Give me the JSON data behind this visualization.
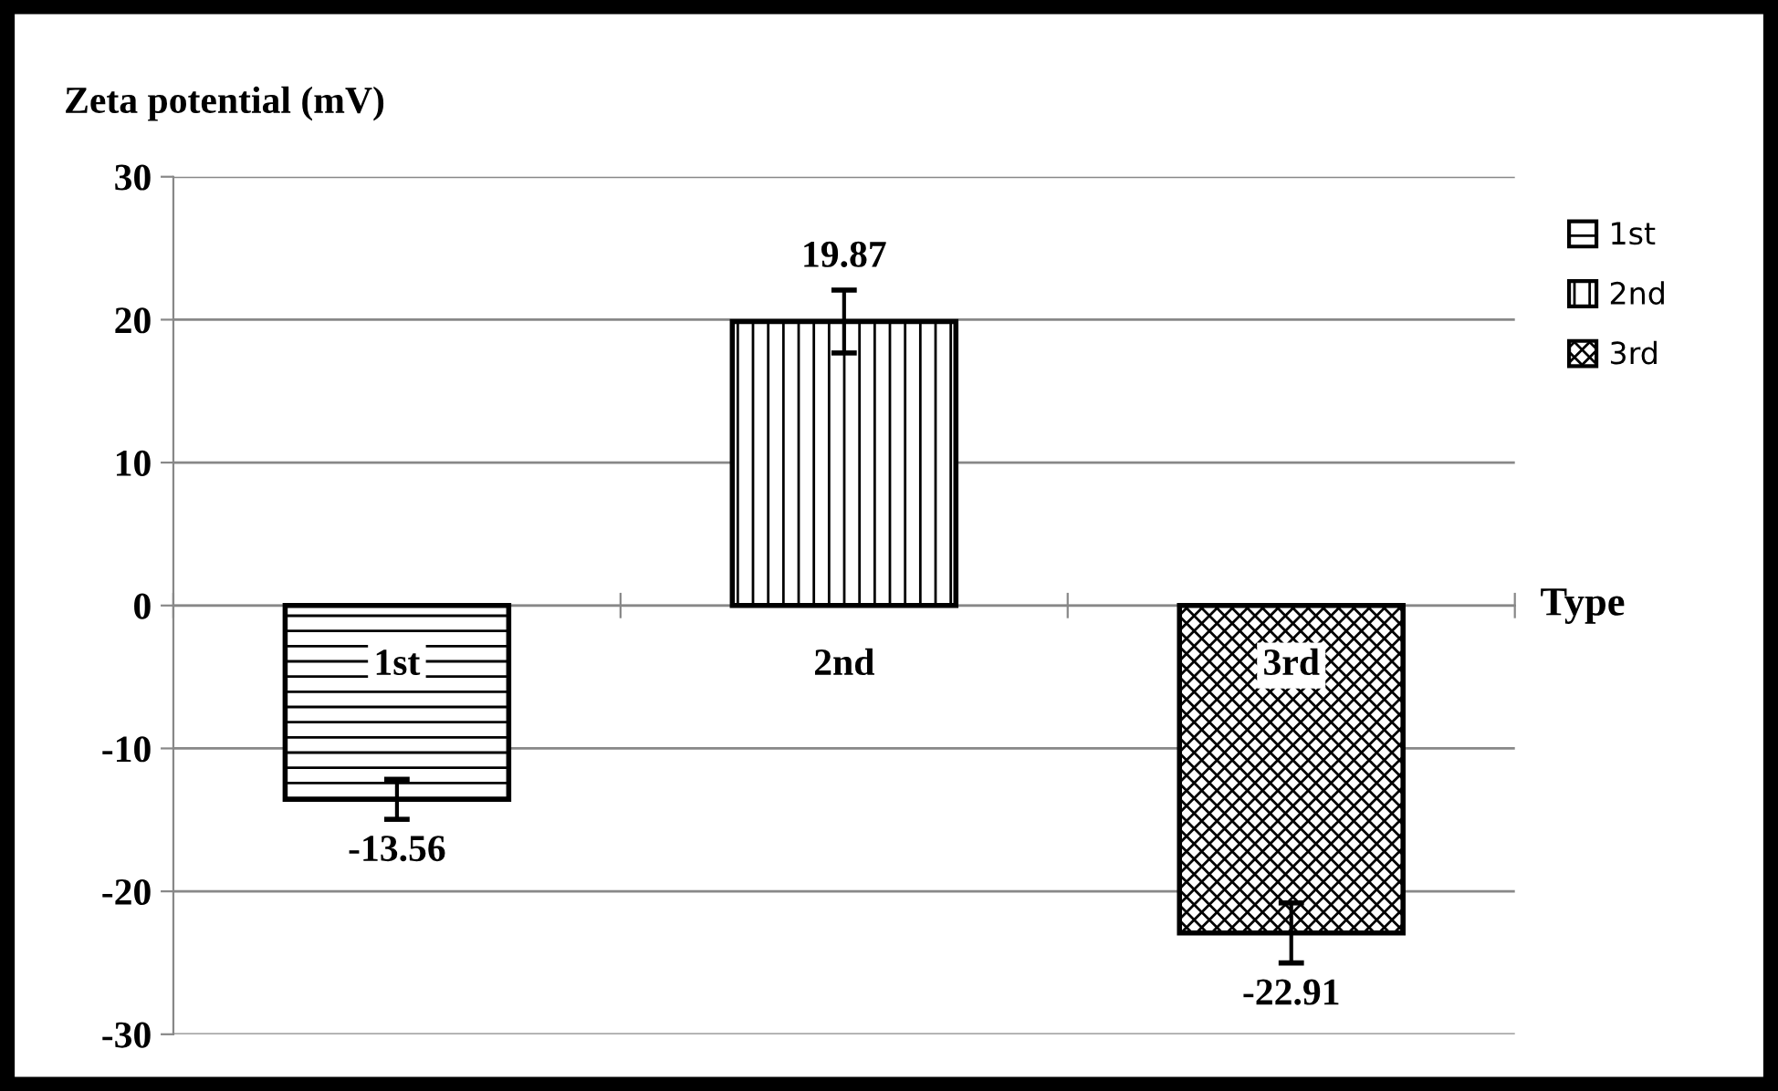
{
  "chart_data": {
    "type": "bar",
    "ylabel": "Zeta potential (mV)",
    "xlabel": "Type",
    "categories": [
      "1st",
      "2nd",
      "3rd"
    ],
    "series": [
      {
        "name": "1st",
        "color": "#000000",
        "values": [
          -13.56,
          null,
          null
        ],
        "errors": [
          1.4,
          null,
          null
        ]
      },
      {
        "name": "2nd",
        "color": "#000000",
        "values": [
          null,
          19.87,
          null
        ],
        "errors": [
          null,
          2.2,
          null
        ]
      },
      {
        "name": "3rd",
        "color": "#000000",
        "values": [
          null,
          null,
          -22.91
        ],
        "errors": [
          null,
          null,
          2.1
        ]
      }
    ],
    "ylim": [
      -30,
      30
    ],
    "yticks": [
      -30,
      -20,
      -10,
      0,
      10,
      20,
      30
    ],
    "grid": "y",
    "legend": "top right",
    "data_labels": true
  }
}
